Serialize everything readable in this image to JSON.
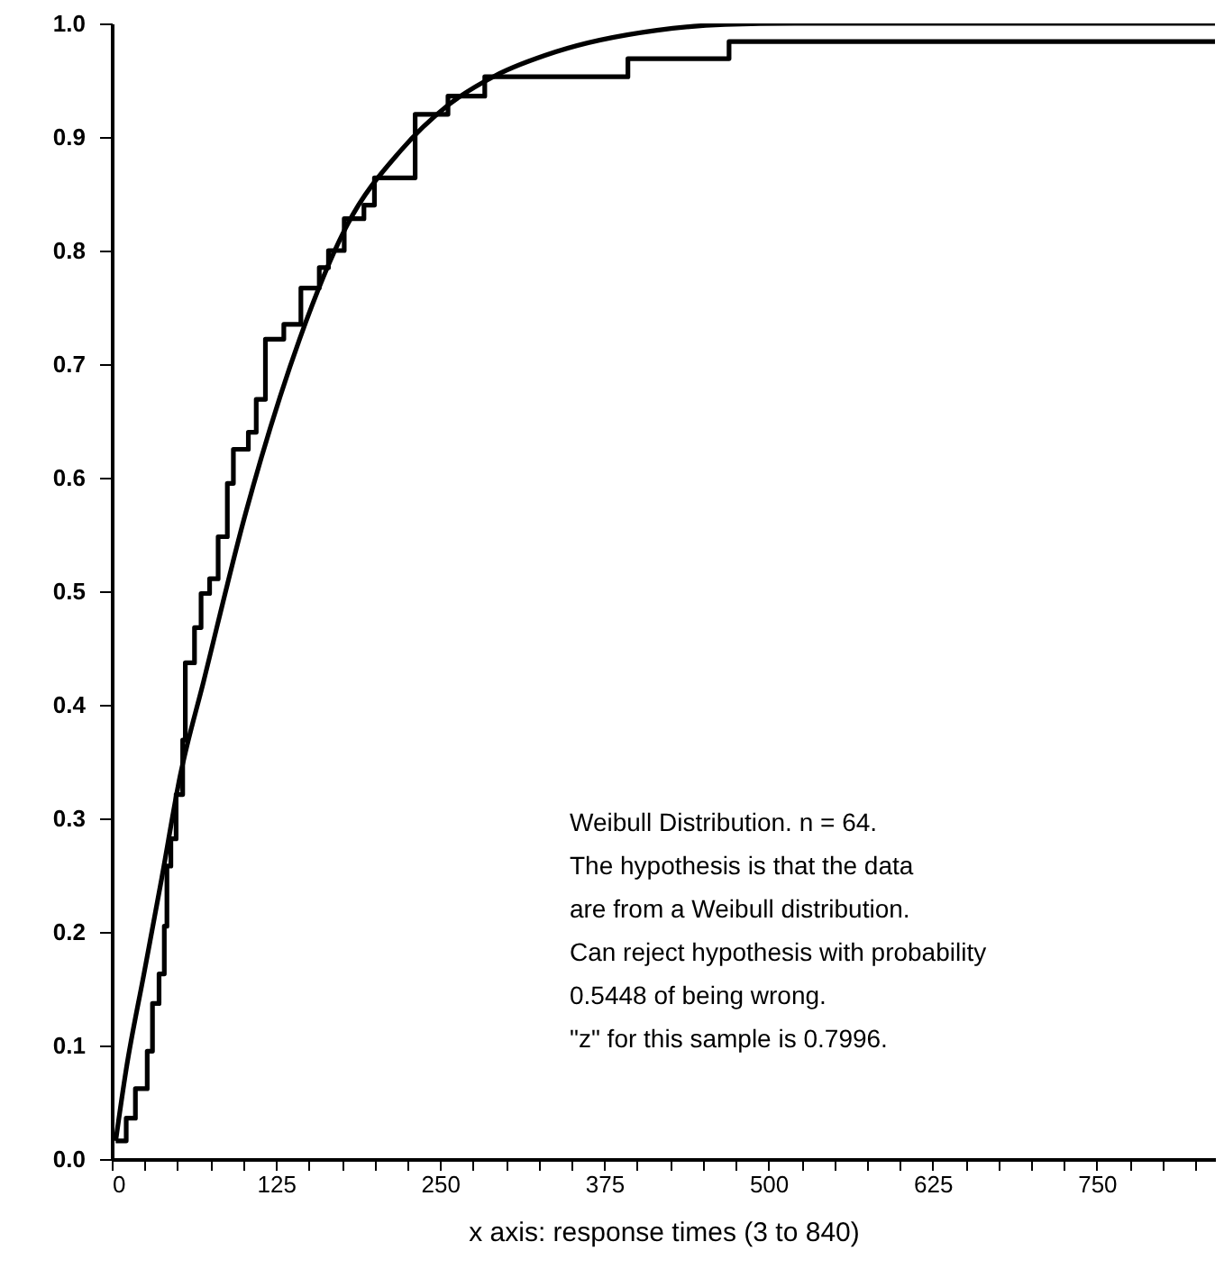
{
  "chart_data": {
    "type": "line",
    "xlabel": "x axis: response times (3 to 840)",
    "xlim": [
      0,
      840
    ],
    "ylim": [
      0,
      1
    ],
    "xticks": [
      0,
      {
        "value": 25,
        "label": null
      },
      {
        "value": 50,
        "label": null
      },
      {
        "value": 75,
        "label": null
      },
      {
        "value": 100,
        "label": null
      },
      125,
      {
        "value": 150,
        "label": null
      },
      {
        "value": 175,
        "label": null
      },
      {
        "value": 200,
        "label": null
      },
      {
        "value": 225,
        "label": null
      },
      250,
      {
        "value": 275,
        "label": null
      },
      {
        "value": 300,
        "label": null
      },
      {
        "value": 325,
        "label": null
      },
      {
        "value": 350,
        "label": null
      },
      375,
      {
        "value": 400,
        "label": null
      },
      {
        "value": 425,
        "label": null
      },
      {
        "value": 450,
        "label": null
      },
      {
        "value": 475,
        "label": null
      },
      500,
      {
        "value": 525,
        "label": null
      },
      {
        "value": 550,
        "label": null
      },
      {
        "value": 575,
        "label": null
      },
      {
        "value": 600,
        "label": null
      },
      625,
      {
        "value": 650,
        "label": null
      },
      {
        "value": 675,
        "label": null
      },
      {
        "value": 700,
        "label": null
      },
      {
        "value": 725,
        "label": null
      },
      750,
      {
        "value": 775,
        "label": null
      },
      {
        "value": 800,
        "label": null
      },
      {
        "value": 825,
        "label": null
      }
    ],
    "yticks": [
      {
        "value": 0,
        "label": "0.0"
      },
      0.1,
      0.2,
      0.3,
      0.4,
      0.5,
      0.6,
      0.7,
      0.8,
      0.9,
      {
        "value": 1,
        "label": "1.0"
      }
    ],
    "series": [
      {
        "type": "step",
        "color": "#000000",
        "x": [
          3,
          11,
          18,
          27,
          31,
          36,
          40,
          42,
          45,
          49,
          54,
          56,
          63,
          68,
          74.5,
          81,
          88,
          92.6,
          104,
          110,
          117,
          131,
          144,
          158,
          165,
          177,
          192,
          200,
          231,
          256,
          284,
          393,
          470,
          840
        ],
        "values": [
          0.016,
          0.036,
          0.062,
          0.095,
          0.137,
          0.163,
          0.205,
          0.258,
          0.282,
          0.321,
          0.369,
          0.437,
          0.468,
          0.498,
          0.511,
          0.548,
          0.595,
          0.625,
          0.64,
          0.669,
          0.722,
          0.735,
          0.767,
          0.785,
          0.8,
          0.828,
          0.84,
          0.864,
          0.92,
          0.936,
          0.953,
          0.969,
          0.984,
          0.984
        ]
      },
      {
        "type": "line",
        "color": "#000000",
        "x": [
          3,
          11,
          24.5,
          38,
          52,
          70,
          102,
          143,
          179,
          220,
          256,
          292,
          338,
          415,
          467,
          520,
          840
        ],
        "values": [
          0.016,
          0.079,
          0.163,
          0.247,
          0.337,
          0.421,
          0.569,
          0.722,
          0.822,
          0.888,
          0.928,
          0.954,
          0.975,
          0.994,
          0.999,
          1,
          1
        ]
      }
    ],
    "annotations": [
      "Weibull Distribution. n = 64.",
      "The hypothesis is that the data",
      "are from a Weibull distribution.",
      "Can reject hypothesis with probability",
      "0.5448 of being wrong.",
      "\"z\" for this sample is 0.7996."
    ]
  }
}
